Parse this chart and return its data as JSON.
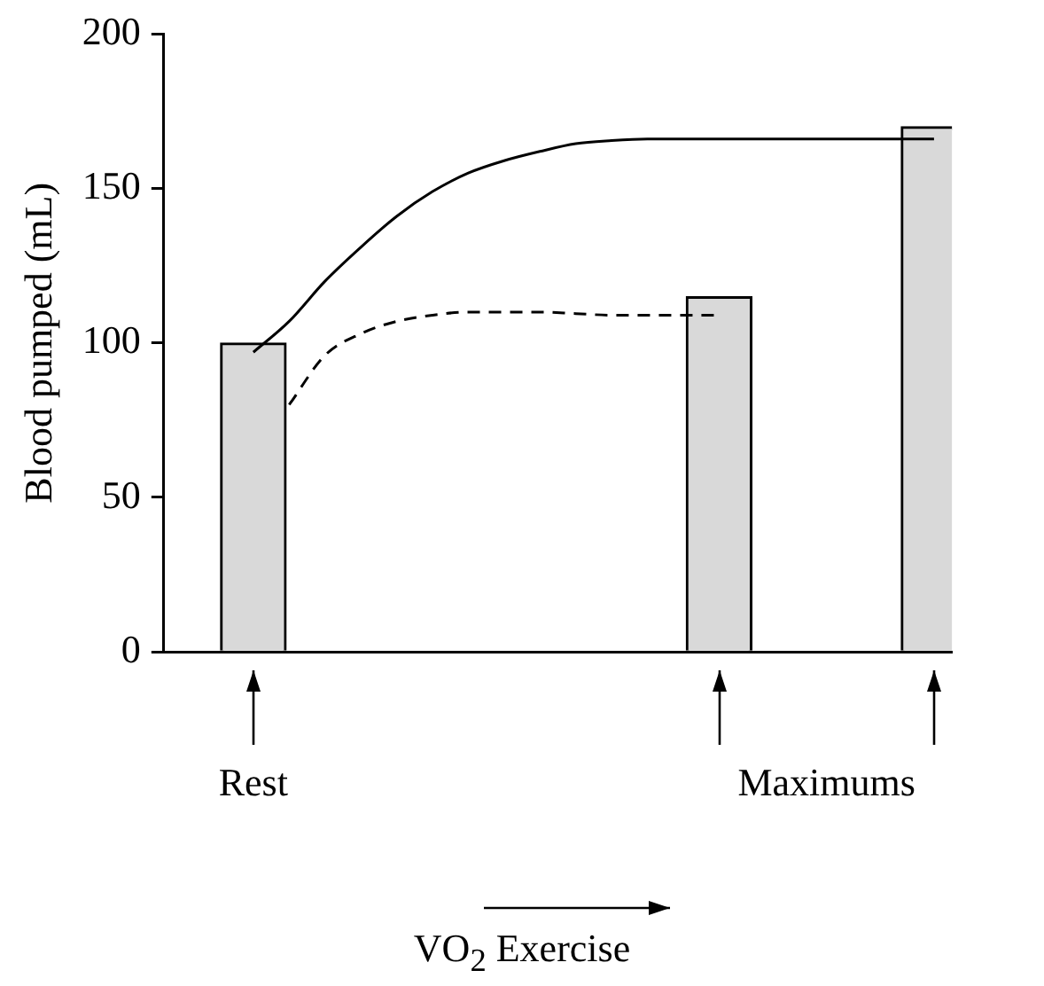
{
  "chart_data": {
    "type": "bar",
    "xlabel": "VO$_{2}$ Exercise",
    "ylabel": "Blood pumped (mL)",
    "categories": [
      null,
      null,
      "Rest",
      null,
      null,
      null,
      null,
      null,
      null,
      null,
      null,
      null,
      null,
      null,
      null,
      null,
      null,
      null,
      "Maximums",
      null,
      null,
      null
    ],
    "ylim": [
      0,
      200
    ],
    "yticks": [
      0,
      50,
      100,
      150,
      200
    ],
    "grid": false,
    "legend": false,
    "series": [
      {
        "values": [
          null,
          null,
          100,
          null,
          null,
          null,
          null,
          null,
          null,
          null,
          null,
          null,
          null,
          null,
          null,
          115,
          null,
          null,
          null,
          null,
          null,
          170
        ],
        "color": "#d9d9d9"
      },
      {
        "type": "line",
        "values": [
          null,
          null,
          97,
          107,
          120,
          131,
          141,
          149,
          155,
          159,
          162,
          164.5,
          165.5,
          166,
          166,
          166,
          166,
          166,
          166,
          166,
          166,
          166
        ],
        "color": "#000000",
        "line_style": "solid",
        "marker": "none"
      },
      {
        "type": "line",
        "values": [
          null,
          null,
          null,
          80,
          96,
          103,
          107,
          109,
          110,
          110,
          110,
          109.5,
          109,
          109,
          109,
          109,
          null,
          null,
          null,
          null,
          null,
          null
        ],
        "color": "#000000",
        "line_style": "dashed",
        "marker": "none"
      }
    ]
  }
}
